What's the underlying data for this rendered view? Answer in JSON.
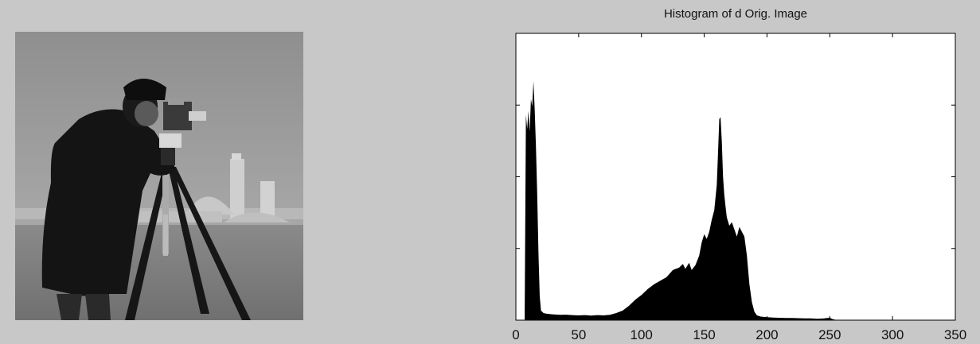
{
  "photo": {
    "sky_color": "#9a9a9a",
    "ground_color": "#7d7d7d",
    "figure_color": "#141414",
    "buildings_color": "#c4c4c4"
  },
  "chart_data": {
    "type": "bar",
    "title": "Histogram of d Orig. Image",
    "xlabel": "",
    "ylabel": "",
    "xlim": [
      0,
      350
    ],
    "ylim": [
      0,
      2400
    ],
    "x_ticks": [
      0,
      50,
      100,
      150,
      200,
      250,
      300,
      350
    ],
    "y_ticks": [
      600,
      1200,
      1800
    ],
    "y_tick_labels_shown": false,
    "grid": false,
    "bar_color": "#000000",
    "points": [
      [
        7,
        0
      ],
      [
        8,
        1720
      ],
      [
        9,
        1600
      ],
      [
        10,
        1750
      ],
      [
        11,
        1580
      ],
      [
        12,
        1850
      ],
      [
        13,
        1790
      ],
      [
        14,
        2000
      ],
      [
        15,
        1760
      ],
      [
        16,
        1450
      ],
      [
        17,
        1050
      ],
      [
        18,
        560
      ],
      [
        19,
        200
      ],
      [
        20,
        80
      ],
      [
        22,
        60
      ],
      [
        24,
        55
      ],
      [
        26,
        52
      ],
      [
        28,
        50
      ],
      [
        30,
        48
      ],
      [
        35,
        45
      ],
      [
        40,
        46
      ],
      [
        45,
        42
      ],
      [
        50,
        40
      ],
      [
        55,
        42
      ],
      [
        60,
        38
      ],
      [
        65,
        42
      ],
      [
        70,
        40
      ],
      [
        75,
        45
      ],
      [
        80,
        60
      ],
      [
        85,
        80
      ],
      [
        90,
        120
      ],
      [
        95,
        170
      ],
      [
        100,
        210
      ],
      [
        105,
        260
      ],
      [
        110,
        300
      ],
      [
        115,
        330
      ],
      [
        120,
        360
      ],
      [
        125,
        420
      ],
      [
        130,
        440
      ],
      [
        133,
        470
      ],
      [
        135,
        430
      ],
      [
        138,
        480
      ],
      [
        140,
        420
      ],
      [
        143,
        460
      ],
      [
        146,
        540
      ],
      [
        148,
        650
      ],
      [
        150,
        720
      ],
      [
        152,
        680
      ],
      [
        154,
        740
      ],
      [
        156,
        840
      ],
      [
        158,
        920
      ],
      [
        160,
        1130
      ],
      [
        161,
        1400
      ],
      [
        162,
        1680
      ],
      [
        163,
        1700
      ],
      [
        164,
        1500
      ],
      [
        165,
        1200
      ],
      [
        166,
        1050
      ],
      [
        167,
        950
      ],
      [
        168,
        860
      ],
      [
        170,
        790
      ],
      [
        172,
        820
      ],
      [
        174,
        760
      ],
      [
        176,
        700
      ],
      [
        178,
        780
      ],
      [
        180,
        740
      ],
      [
        182,
        700
      ],
      [
        184,
        540
      ],
      [
        185,
        420
      ],
      [
        186,
        300
      ],
      [
        188,
        150
      ],
      [
        190,
        70
      ],
      [
        192,
        40
      ],
      [
        195,
        30
      ],
      [
        200,
        25
      ],
      [
        205,
        22
      ],
      [
        210,
        20
      ],
      [
        215,
        18
      ],
      [
        220,
        18
      ],
      [
        225,
        17
      ],
      [
        230,
        15
      ],
      [
        235,
        15
      ],
      [
        240,
        12
      ],
      [
        245,
        14
      ],
      [
        248,
        18
      ],
      [
        250,
        20
      ],
      [
        252,
        10
      ],
      [
        254,
        4
      ],
      [
        255,
        0
      ]
    ]
  }
}
